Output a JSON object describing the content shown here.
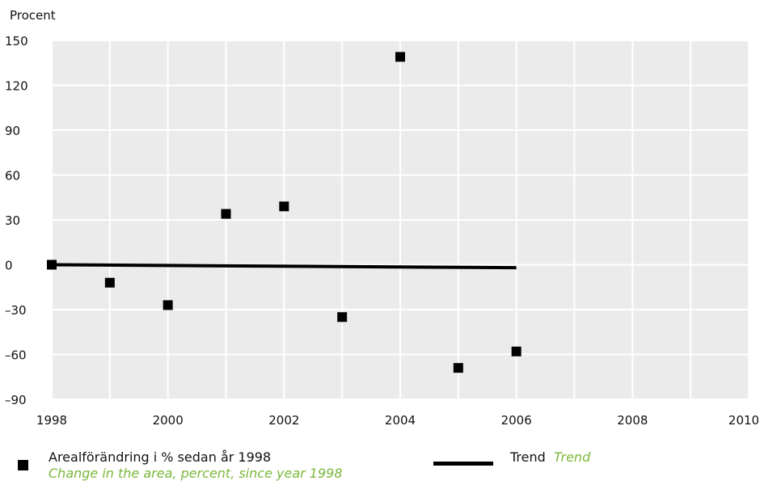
{
  "chart_data": {
    "type": "scatter",
    "ylabel": "Procent",
    "xlim": [
      1998,
      2010
    ],
    "ylim": [
      -90,
      150
    ],
    "x_ticks": [
      1998,
      2000,
      2002,
      2004,
      2006,
      2008,
      2010
    ],
    "y_ticks": [
      150,
      120,
      90,
      60,
      30,
      0,
      -30,
      -60,
      -90
    ],
    "y_tick_labels": [
      "150",
      "120",
      "90",
      "60",
      "30",
      "0",
      "–30",
      "–60",
      "–90"
    ],
    "grid": true,
    "legend_position": "bottom",
    "series": [
      {
        "name": "Arealförändring i % sedan år 1998",
        "name_en": "Change in the area, percent, since year 1998",
        "type": "scatter",
        "marker": "square",
        "color": "#000000",
        "x": [
          1998,
          1999,
          2000,
          2001,
          2002,
          2003,
          2004,
          2005,
          2006
        ],
        "y": [
          0,
          -12,
          -27,
          34,
          39,
          -35,
          139,
          -69,
          -58
        ]
      },
      {
        "name": "Trend",
        "name_en": "Trend",
        "type": "line",
        "color": "#000000",
        "x": [
          1998,
          2006
        ],
        "y": [
          0,
          -2
        ]
      }
    ],
    "colors": {
      "plot_background": "#ebebeb",
      "grid": "#ffffff",
      "english_text": "#7ab83a"
    }
  }
}
